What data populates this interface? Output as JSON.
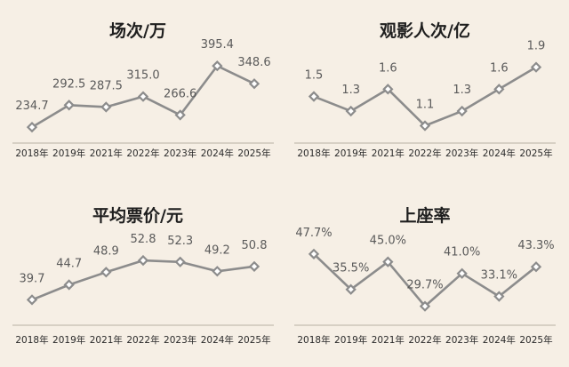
{
  "chart_data": [
    {
      "type": "line",
      "title": "场次/万",
      "categories": [
        "2018年",
        "2019年",
        "2021年",
        "2022年",
        "2023年",
        "2024年",
        "2025年"
      ],
      "values": [
        234.7,
        292.5,
        287.5,
        315.0,
        266.6,
        395.4,
        348.6
      ],
      "labels": [
        "234.7",
        "292.5",
        "287.5",
        "315.0",
        "266.6",
        "395.4",
        "348.6"
      ],
      "ylim": [
        200,
        440
      ],
      "grid": false,
      "color": "#8c8c8c"
    },
    {
      "type": "line",
      "title": "观影人次/亿",
      "categories": [
        "2018年",
        "2019年",
        "2021年",
        "2022年",
        "2023年",
        "2024年",
        "2025年"
      ],
      "values": [
        1.5,
        1.3,
        1.6,
        1.1,
        1.3,
        1.6,
        1.9
      ],
      "labels": [
        "1.5",
        "1.3",
        "1.6",
        "1.1",
        "1.3",
        "1.6",
        "1.9"
      ],
      "ylim": [
        0.9,
        2.15
      ],
      "grid": false,
      "color": "#8c8c8c"
    },
    {
      "type": "line",
      "title": "平均票价/元",
      "categories": [
        "2018年",
        "2019年",
        "2021年",
        "2022年",
        "2023年",
        "2024年",
        "2025年"
      ],
      "values": [
        39.7,
        44.7,
        48.9,
        52.8,
        52.3,
        49.2,
        50.8
      ],
      "labels": [
        "39.7",
        "44.7",
        "48.9",
        "52.8",
        "52.3",
        "49.2",
        "50.8"
      ],
      "ylim": [
        33,
        62
      ],
      "grid": false,
      "color": "#8c8c8c"
    },
    {
      "type": "line",
      "title": "上座率",
      "categories": [
        "2018年",
        "2019年",
        "2021年",
        "2022年",
        "2023年",
        "2024年",
        "2025年"
      ],
      "values": [
        47.7,
        35.5,
        45.0,
        29.7,
        41.0,
        33.1,
        43.3
      ],
      "labels": [
        "47.7%",
        "35.5%",
        "45.0%",
        "29.7%",
        "41.0%",
        "33.1%",
        "43.3%"
      ],
      "ylim": [
        25,
        55
      ],
      "grid": false,
      "color": "#8c8c8c"
    }
  ]
}
